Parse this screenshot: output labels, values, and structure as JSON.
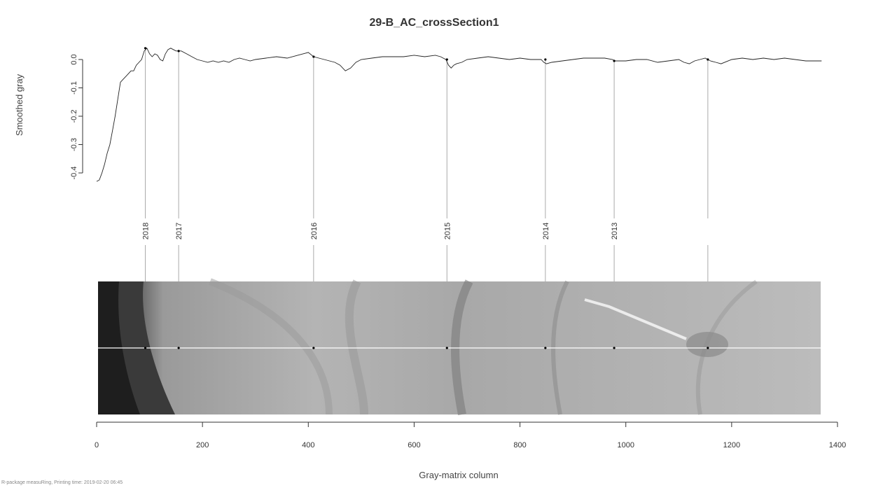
{
  "chart_data": {
    "type": "line",
    "title": "29-B_AC_crossSection1",
    "ylabel": "Smoothed gray",
    "xlabel": "Gray-matrix column",
    "footer": "R-package measuRing, Printing time:   2019-02-20 06:45",
    "ylim": [
      -0.43,
      0.04
    ],
    "xlim": [
      0,
      1400
    ],
    "yticks": [
      "0.0",
      "-0.1",
      "-0.2",
      "-0.3",
      "-0.4"
    ],
    "ytick_values": [
      0,
      -0.1,
      -0.2,
      -0.3,
      -0.4
    ],
    "xticks": [
      "0",
      "200",
      "400",
      "600",
      "800",
      "1000",
      "1200",
      "1400"
    ],
    "xtick_values": [
      0,
      200,
      400,
      600,
      800,
      1000,
      1200,
      1400
    ],
    "series": [
      {
        "x": [
          0,
          5,
          10,
          15,
          20,
          25,
          30,
          35,
          40,
          45,
          50,
          55,
          60,
          65,
          70,
          75,
          80,
          85,
          90,
          95,
          100,
          105,
          110,
          115,
          120,
          125,
          130,
          135,
          140,
          145,
          150,
          155,
          160,
          170,
          180,
          190,
          200,
          210,
          220,
          230,
          240,
          250,
          260,
          270,
          280,
          290,
          300,
          320,
          340,
          360,
          380,
          390,
          400,
          410,
          420,
          430,
          440,
          450,
          460,
          470,
          480,
          490,
          500,
          520,
          540,
          560,
          580,
          600,
          620,
          640,
          650,
          660,
          665,
          670,
          675,
          680,
          690,
          700,
          720,
          740,
          760,
          780,
          800,
          820,
          840,
          845,
          850,
          860,
          880,
          900,
          920,
          940,
          960,
          975,
          980,
          1000,
          1020,
          1040,
          1060,
          1080,
          1100,
          1110,
          1120,
          1130,
          1140,
          1150,
          1155,
          1160,
          1170,
          1180,
          1200,
          1220,
          1240,
          1260,
          1280,
          1300,
          1320,
          1340,
          1360,
          1370
        ],
        "y": [
          -0.43,
          -0.425,
          -0.4,
          -0.37,
          -0.33,
          -0.3,
          -0.25,
          -0.2,
          -0.14,
          -0.08,
          -0.07,
          -0.06,
          -0.05,
          -0.04,
          -0.04,
          -0.02,
          -0.01,
          0.0,
          0.03,
          0.04,
          0.02,
          0.01,
          0.02,
          0.015,
          0.0,
          -0.005,
          0.02,
          0.035,
          0.04,
          0.035,
          0.03,
          0.03,
          0.03,
          0.02,
          0.01,
          0.0,
          -0.005,
          -0.01,
          -0.005,
          -0.01,
          -0.005,
          -0.01,
          0.0,
          0.005,
          0.0,
          -0.005,
          0.0,
          0.005,
          0.01,
          0.005,
          0.015,
          0.02,
          0.025,
          0.01,
          0.005,
          0.0,
          -0.005,
          -0.01,
          -0.02,
          -0.04,
          -0.03,
          -0.01,
          0.0,
          0.005,
          0.01,
          0.01,
          0.01,
          0.015,
          0.01,
          0.015,
          0.01,
          0.0,
          -0.02,
          -0.03,
          -0.02,
          -0.015,
          -0.01,
          0.0,
          0.005,
          0.01,
          0.005,
          0.0,
          0.005,
          0.0,
          0.0,
          -0.01,
          -0.015,
          -0.01,
          -0.005,
          0.0,
          0.005,
          0.005,
          0.005,
          0.0,
          -0.005,
          -0.005,
          0.0,
          0.0,
          -0.01,
          -0.005,
          0.0,
          -0.01,
          -0.015,
          -0.005,
          0.0,
          0.005,
          0.0,
          -0.005,
          -0.01,
          -0.015,
          0.0,
          0.005,
          0.0,
          0.005,
          0.0,
          0.005,
          0.0,
          -0.005,
          -0.005,
          -0.005
        ]
      }
    ],
    "rings": [
      {
        "year": "2018",
        "x": 92,
        "y": 0.04
      },
      {
        "year": "2017",
        "x": 155,
        "y": 0.03
      },
      {
        "year": "2016",
        "x": 410,
        "y": 0.01
      },
      {
        "year": "2015",
        "x": 662,
        "y": 0.0
      },
      {
        "year": "2014",
        "x": 848,
        "y": 0.0
      },
      {
        "year": "2013",
        "x": 978,
        "y": -0.005
      },
      {
        "year": "",
        "x": 1155,
        "y": 0.0
      }
    ],
    "grid": false
  }
}
